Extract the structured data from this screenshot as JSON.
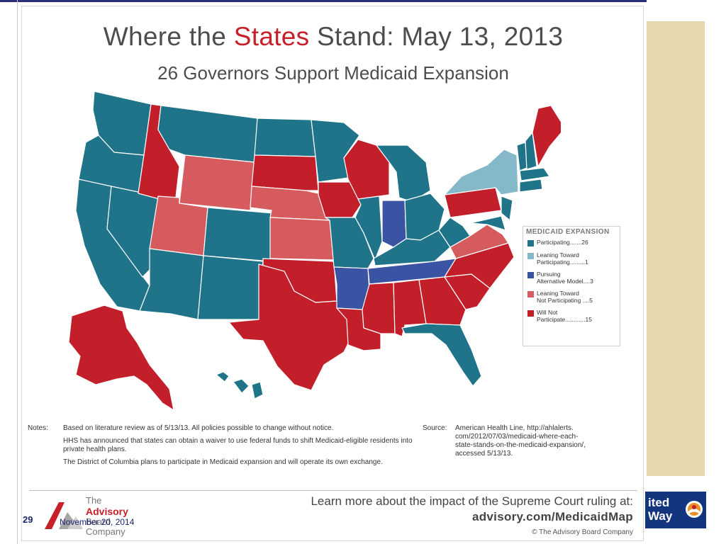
{
  "title": {
    "prefix": "Where the ",
    "accent": "States",
    "suffix": " Stand: May 13, 2013"
  },
  "subtitle": "26 Governors Support Medicaid Expansion",
  "colors": {
    "participating": "#1f7489",
    "leaning_toward_participating": "#85b9c9",
    "pursuing_alternative_model": "#3b53a3",
    "leaning_toward_not_participating": "#d65b5e",
    "will_not_participate": "#c21f2b",
    "accent": "#c8202a",
    "slide_blue": "#1d2570"
  },
  "legend": {
    "title": "MEDICAID EXPANSION",
    "items": [
      {
        "key": "participating",
        "label": "Participating.......26"
      },
      {
        "key": "leaning_toward_participating",
        "label": "Leaning Toward\nParticipating.........1"
      },
      {
        "key": "pursuing_alternative_model",
        "label": "Pursuing\nAlternative Model....3"
      },
      {
        "key": "leaning_toward_not_participating",
        "label": "Leaning Toward\nNot Participating ....5"
      },
      {
        "key": "will_not_participate",
        "label": "Will Not\nParticipate............15"
      }
    ]
  },
  "notes": {
    "label": "Notes:",
    "lines": [
      "Based on literature review as of 5/13/13. All policies possible to change without notice.",
      "HHS has announced that states can obtain a waiver to use federal funds to shift Medicaid-eligible residents into private health plans.",
      "The District of Columbia plans to participate in Medicaid expansion and will operate its own exchange."
    ]
  },
  "source": {
    "label": "Source:",
    "text": "American Health Line, http://ahlalerts.\ncom/2012/07/03/medicaid-where-each-\nstate-stands-on-the-medicaid-expansion/,\naccessed 5/13/13."
  },
  "footer": {
    "cta_line": "Learn more about the impact of the Supreme Court ruling at:",
    "cta_url": "advisory.com/MedicaidMap",
    "copyright": "© The Advisory Board Company",
    "brand_lines": [
      "The",
      "Advisory",
      "Board",
      "Company"
    ]
  },
  "slide": {
    "number": "29",
    "date": "November 20, 2014"
  },
  "partner_logo": {
    "text": "ited\nWay"
  }
}
